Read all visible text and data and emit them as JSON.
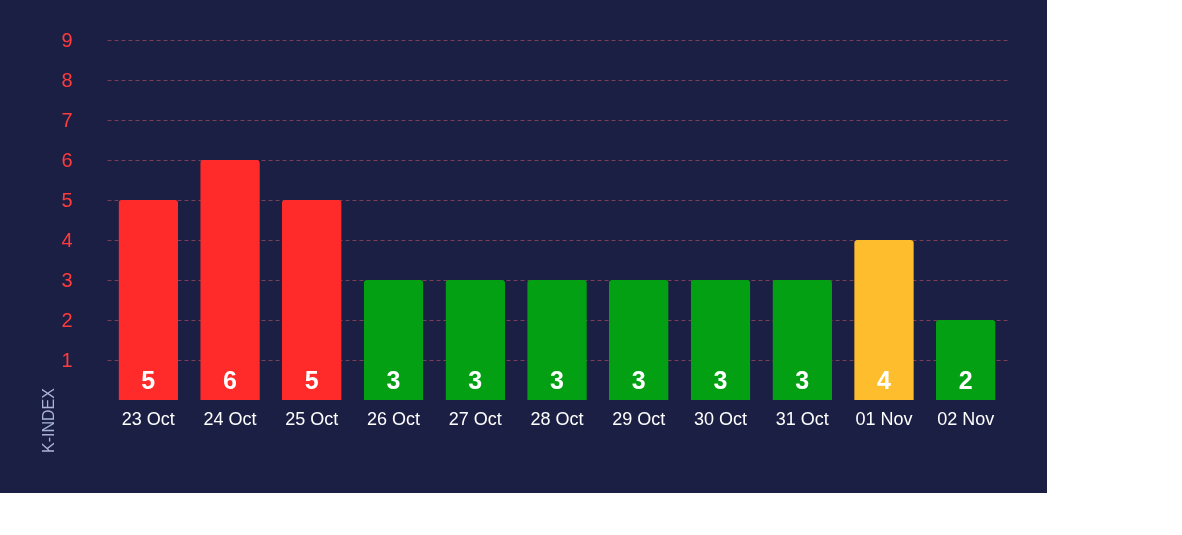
{
  "chart_data": {
    "type": "bar",
    "ylabel": "K-INDEX",
    "categories": [
      "23 Oct",
      "24 Oct",
      "25 Oct",
      "26 Oct",
      "27 Oct",
      "28 Oct",
      "29 Oct",
      "30 Oct",
      "31 Oct",
      "01 Nov",
      "02 Nov"
    ],
    "values": [
      5,
      6,
      5,
      3,
      3,
      3,
      3,
      3,
      3,
      4,
      2
    ],
    "colors": [
      "#ff2b2b",
      "#ff2b2b",
      "#ff2b2b",
      "#04a014",
      "#04a014",
      "#04a014",
      "#04a014",
      "#04a014",
      "#04a014",
      "#fdbd2c",
      "#04a014"
    ],
    "ylim": [
      0,
      9
    ],
    "yticks": [
      1,
      2,
      3,
      4,
      5,
      6,
      7,
      8,
      9
    ],
    "data_labels": true,
    "grid": "y",
    "line_style": "dashed"
  }
}
